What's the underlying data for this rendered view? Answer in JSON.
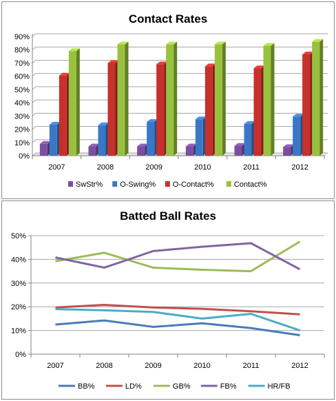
{
  "chart_data": [
    {
      "type": "bar",
      "title": "Contact Rates",
      "categories": [
        "2007",
        "2008",
        "2009",
        "2010",
        "2011",
        "2012"
      ],
      "ylim": [
        0,
        90
      ],
      "yticks": [
        "0%",
        "10%",
        "20%",
        "30%",
        "40%",
        "50%",
        "60%",
        "70%",
        "80%",
        "90%"
      ],
      "grid": true,
      "legend_position": "bottom",
      "series": [
        {
          "name": "SwStr%",
          "color": "#7b4fa0",
          "values": [
            9,
            7,
            7,
            7,
            7.5,
            6.5
          ]
        },
        {
          "name": "O-Swing%",
          "color": "#3a78c6",
          "values": [
            23.5,
            23,
            25.5,
            27.5,
            24,
            29.5
          ]
        },
        {
          "name": "O-Contact%",
          "color": "#c8302c",
          "values": [
            60.5,
            70,
            69,
            67.5,
            66,
            76.5
          ]
        },
        {
          "name": "Contact%",
          "color": "#98c23d",
          "values": [
            79,
            84,
            84,
            84,
            83,
            86
          ]
        }
      ]
    },
    {
      "type": "line",
      "title": "Batted Ball Rates",
      "categories": [
        "2007",
        "2008",
        "2009",
        "2010",
        "2011",
        "2012"
      ],
      "ylim": [
        0,
        50
      ],
      "yticks": [
        "0%",
        "10%",
        "20%",
        "30%",
        "40%",
        "50%"
      ],
      "grid": true,
      "legend_position": "bottom",
      "series": [
        {
          "name": "BB%",
          "color": "#4a7ab8",
          "values": [
            12.5,
            14.2,
            11.5,
            13,
            11,
            8
          ]
        },
        {
          "name": "LD%",
          "color": "#c0504d",
          "values": [
            19.7,
            20.8,
            19.7,
            19.1,
            18.1,
            16.8
          ]
        },
        {
          "name": "GB%",
          "color": "#9bbb59",
          "values": [
            39.2,
            42.8,
            36.5,
            35.6,
            35,
            47.5
          ]
        },
        {
          "name": "FB%",
          "color": "#8064a2",
          "values": [
            40.8,
            36.5,
            43.5,
            45.3,
            46.8,
            35.8
          ]
        },
        {
          "name": "HR/FB",
          "color": "#4bacc6",
          "values": [
            19,
            18.5,
            17.8,
            15,
            17,
            10
          ]
        }
      ]
    }
  ]
}
